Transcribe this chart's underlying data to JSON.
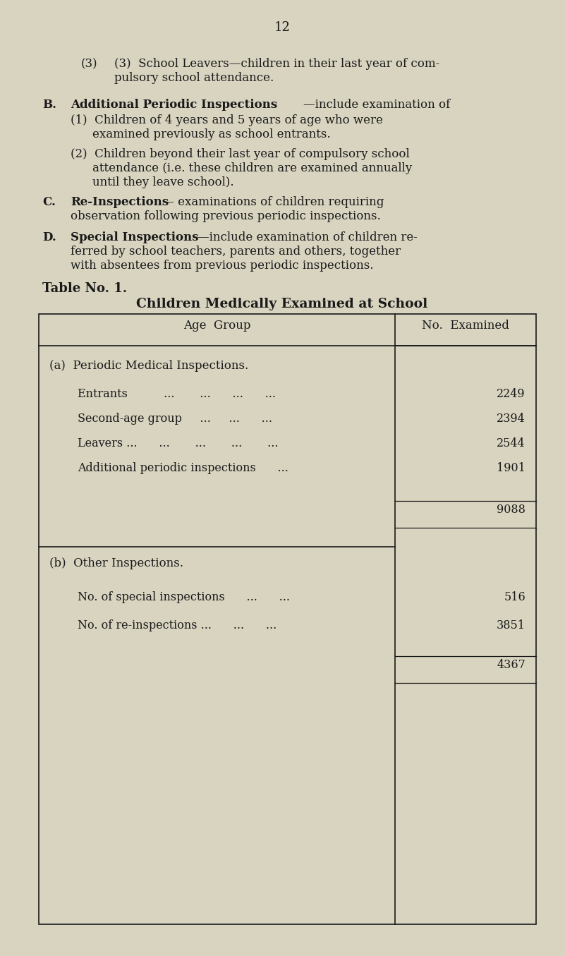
{
  "page_number": "12",
  "bg_color": "#d8d4c0",
  "text_color": "#1a1a1a",
  "page_width": 8.01,
  "page_height": 13.55,
  "para3_line1": "(3)  School Leavers—children in their last year of com-",
  "para3_line2": "pulsory school attendance.",
  "paraB_label": "B.",
  "paraB_bold": "Additional Periodic Inspections",
  "paraB_normal": "—include examination of",
  "paraB1_line1": "(1)  Children of 4 years and 5 years of age who were",
  "paraB1_line2": "examined previously as school entrants.",
  "paraB2_line1": "(2)  Children beyond their last year of compulsory school",
  "paraB2_line2": "attendance (i.e. these children are examined annually",
  "paraB2_line3": "until they leave school).",
  "paraC_label": "C.",
  "paraC_bold": "Re-Inspections",
  "paraC_normal": " — examinations of children requiring",
  "paraC_line2": "observation following previous periodic inspections.",
  "paraD_label": "D.",
  "paraD_bold": "Special Inspections",
  "paraD_normal": "—include examination of children re-",
  "paraD_line2": "ferred by school teachers, parents and others, together",
  "paraD_line3": "with absentees from previous periodic inspections.",
  "table_title1": "Table No. 1.",
  "table_title2": "Children Medically Examined at School",
  "col1_header": "Age  Group",
  "col2_header": "No.  Examined",
  "section_a_label": "(a)  Periodic Medical Inspections.",
  "section_b_label": "(b)  Other Inspections.",
  "items_a": [
    {
      "label": "Entrants          ...       ...      ...      ...",
      "value": "2249"
    },
    {
      "label": "Second-age group     ...     ...      ...",
      "value": "2394"
    },
    {
      "label": "Leavers ...      ...       ...       ...       ...",
      "value": "2544"
    },
    {
      "label": "Additional periodic inspections      ...",
      "value": "1901"
    }
  ],
  "subtotal_a": "9088",
  "items_b": [
    {
      "label": "No. of special inspections      ...      ...",
      "value": "516"
    },
    {
      "label": "No. of re-inspections ...      ...      ...",
      "value": "3851"
    }
  ],
  "subtotal_b": "4367"
}
